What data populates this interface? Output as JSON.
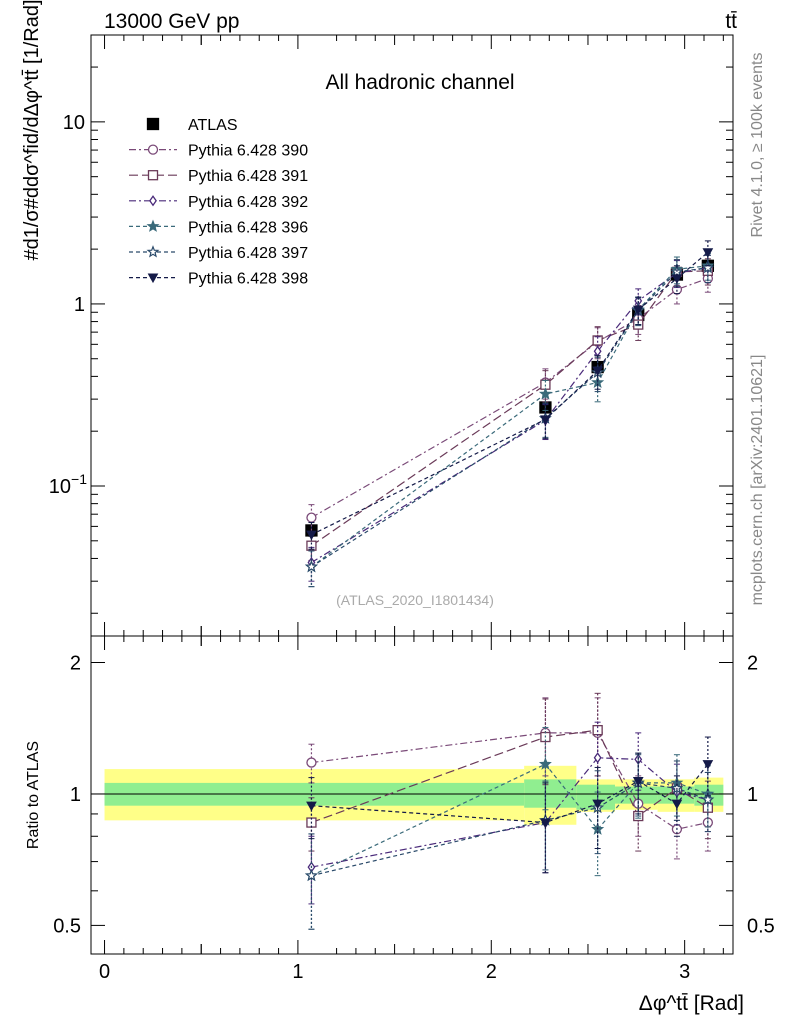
{
  "header": {
    "left": "13000 GeV pp",
    "right": "tt̄"
  },
  "side_labels": {
    "rivet": "Rivet 4.1.0, ≥ 100k events",
    "mcplots": "mcplots.cern.ch [arXiv:2401.10621]"
  },
  "chart_data": [
    {
      "type": "scatter",
      "panel": "main",
      "title": "All hadronic channel",
      "ylabel": "#d1/σ#ddσ^fid/dΔφ^tt̄ [1/Rad]",
      "yscale": "log",
      "ylim": [
        0.015,
        30
      ],
      "xlim": [
        -0.07,
        3.25
      ],
      "yticks": [
        "10^-1",
        "1",
        "10"
      ],
      "watermark": "(ATLAS_2020_I1801434)",
      "legend_position": "top-left",
      "x": [
        1.07,
        2.28,
        2.55,
        2.76,
        2.96,
        3.12
      ],
      "series": [
        {
          "name": "ATLAS",
          "color": "#000000",
          "marker": "filled-square",
          "values": [
            0.057,
            0.27,
            0.45,
            0.87,
            1.45,
            1.62
          ],
          "errors": [
            0.004,
            0.015,
            0.03,
            0.05,
            0.08,
            0.1
          ]
        },
        {
          "name": "Pythia 6.428 390",
          "color": "#7a4a78",
          "marker": "open-circle",
          "dash": "7,3,2,3",
          "values": [
            0.067,
            0.37,
            0.62,
            0.83,
            1.2,
            1.38
          ],
          "errors": [
            0.012,
            0.07,
            0.12,
            0.15,
            0.2,
            0.22
          ]
        },
        {
          "name": "Pythia 6.428 391",
          "color": "#6a3a58",
          "marker": "open-square",
          "dash": "9,4",
          "values": [
            0.047,
            0.36,
            0.63,
            0.77,
            1.5,
            1.52
          ],
          "errors": [
            0.008,
            0.07,
            0.12,
            0.14,
            0.25,
            0.25
          ]
        },
        {
          "name": "Pythia 6.428 392",
          "color": "#4a2a7a",
          "marker": "open-diamond",
          "dash": "7,3,2,3",
          "values": [
            0.038,
            0.23,
            0.55,
            1.04,
            1.48,
            1.58
          ],
          "errors": [
            0.008,
            0.05,
            0.11,
            0.17,
            0.25,
            0.27
          ]
        },
        {
          "name": "Pythia 6.428 396",
          "color": "#3a6a7a",
          "marker": "filled-star",
          "dash": "4,3",
          "values": [
            0.036,
            0.32,
            0.37,
            0.93,
            1.55,
            1.62
          ],
          "errors": [
            0.008,
            0.06,
            0.08,
            0.16,
            0.26,
            0.27
          ]
        },
        {
          "name": "Pythia 6.428 397",
          "color": "#2a4a6a",
          "marker": "open-star",
          "dash": "4,3",
          "values": [
            0.036,
            0.235,
            0.42,
            0.92,
            1.5,
            1.58
          ],
          "errors": [
            0.008,
            0.05,
            0.09,
            0.16,
            0.25,
            0.27
          ]
        },
        {
          "name": "Pythia 6.428 398",
          "color": "#141a48",
          "marker": "filled-triangle-down",
          "dash": "4,3",
          "values": [
            0.054,
            0.232,
            0.43,
            0.93,
            1.38,
            1.92
          ],
          "errors": [
            0.009,
            0.05,
            0.09,
            0.16,
            0.24,
            0.3
          ]
        }
      ]
    },
    {
      "type": "scatter",
      "panel": "ratio",
      "ylabel": "Ratio to ATLAS",
      "xlabel": "Δφ^tt̄ [Rad]",
      "ylim": [
        0.43,
        2.3
      ],
      "yscale": "log",
      "yticks": [
        "0.5",
        "1",
        "2"
      ],
      "xticks": [
        "0",
        "1",
        "2",
        "3"
      ],
      "xlim": [
        -0.07,
        3.25
      ],
      "reference_bands": {
        "inner_color": "#90ee90",
        "outer_color": "#ffff88",
        "bins": [
          {
            "x": [
              0.0,
              2.17
            ],
            "inner": [
              0.94,
              1.06
            ],
            "outer": [
              0.87,
              1.14
            ]
          },
          {
            "x": [
              2.17,
              2.44
            ],
            "inner": [
              0.93,
              1.08
            ],
            "outer": [
              0.85,
              1.16
            ]
          },
          {
            "x": [
              2.44,
              2.64
            ],
            "inner": [
              0.92,
              1.05
            ],
            "outer": [
              0.91,
              1.08
            ]
          },
          {
            "x": [
              2.64,
              2.86
            ],
            "inner": [
              0.95,
              1.04
            ],
            "outer": [
              0.92,
              1.08
            ]
          },
          {
            "x": [
              2.86,
              3.05
            ],
            "inner": [
              0.95,
              1.04
            ],
            "outer": [
              0.91,
              1.08
            ]
          },
          {
            "x": [
              3.05,
              3.2
            ],
            "inner": [
              0.94,
              1.05
            ],
            "outer": [
              0.91,
              1.09
            ]
          }
        ]
      },
      "x": [
        1.07,
        2.28,
        2.55,
        2.76,
        2.96,
        3.12
      ],
      "series": [
        {
          "name": "Pythia 6.428 390",
          "values": [
            1.18,
            1.38,
            1.38,
            0.95,
            0.83,
            0.86
          ],
          "errors": [
            0.12,
            0.28,
            0.28,
            0.15,
            0.12,
            0.12
          ]
        },
        {
          "name": "Pythia 6.428 391",
          "values": [
            0.86,
            1.35,
            1.4,
            0.89,
            1.03,
            0.93
          ],
          "errors": [
            0.12,
            0.3,
            0.3,
            0.15,
            0.16,
            0.14
          ]
        },
        {
          "name": "Pythia 6.428 392",
          "values": [
            0.68,
            0.86,
            1.21,
            1.2,
            1.01,
            0.97
          ],
          "errors": [
            0.12,
            0.2,
            0.25,
            0.18,
            0.16,
            0.15
          ]
        },
        {
          "name": "Pythia 6.428 396",
          "values": [
            0.65,
            1.17,
            0.83,
            1.06,
            1.06,
            1.0
          ],
          "errors": [
            0.16,
            0.25,
            0.18,
            0.18,
            0.17,
            0.16
          ]
        },
        {
          "name": "Pythia 6.428 397",
          "values": [
            0.65,
            0.87,
            0.93,
            1.06,
            1.03,
            0.97
          ],
          "errors": [
            0.16,
            0.2,
            0.2,
            0.17,
            0.16,
            0.15
          ]
        },
        {
          "name": "Pythia 6.428 398",
          "values": [
            0.94,
            0.86,
            0.95,
            1.07,
            0.95,
            1.17
          ],
          "errors": [
            0.15,
            0.2,
            0.2,
            0.17,
            0.15,
            0.18
          ]
        }
      ]
    }
  ]
}
